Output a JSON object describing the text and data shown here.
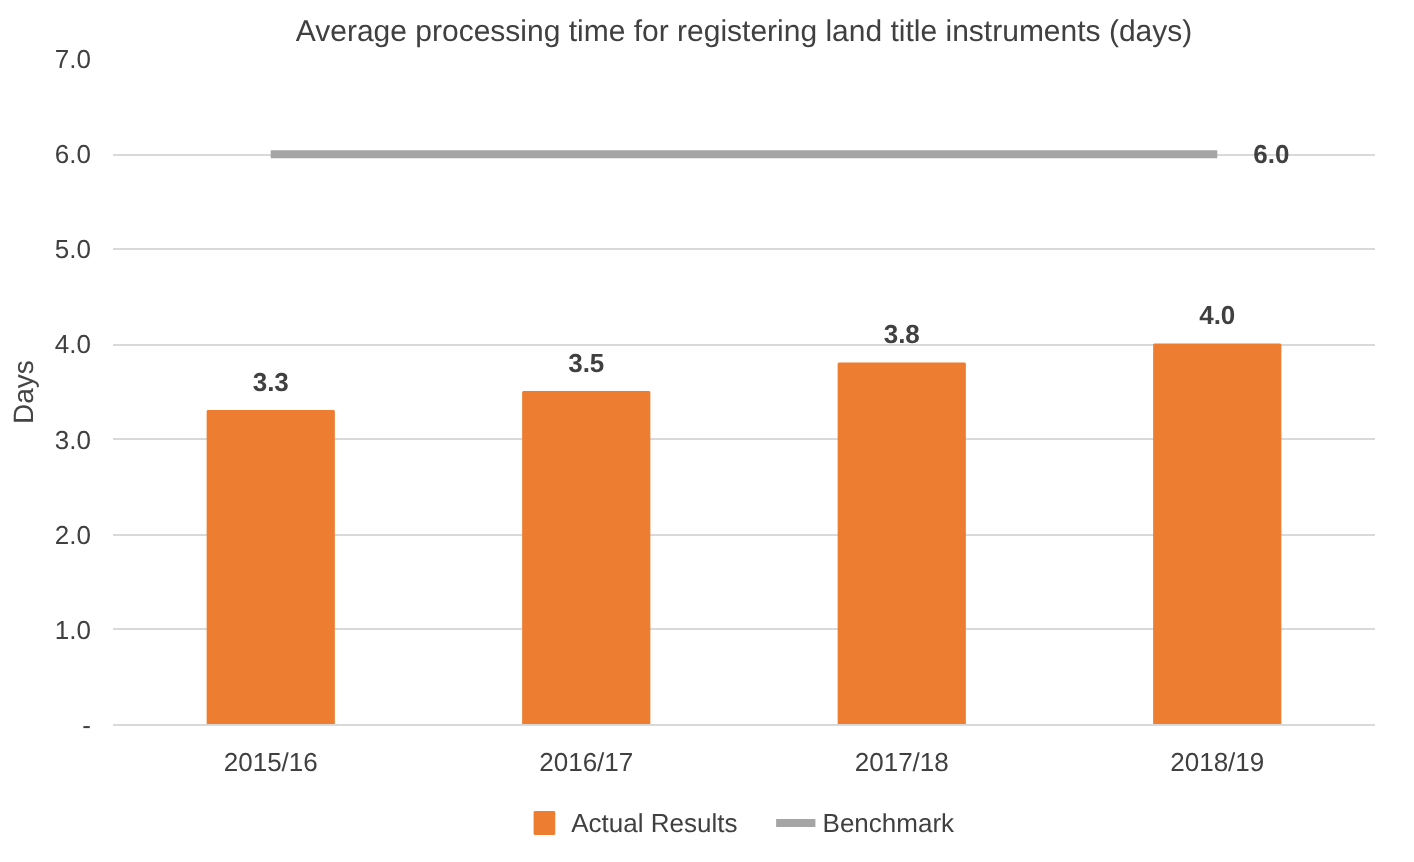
{
  "chart_data": {
    "type": "bar",
    "title": "Average processing time for registering land title instruments (days)",
    "ylabel": "Days",
    "categories": [
      "2015/16",
      "2016/17",
      "2017/18",
      "2018/19"
    ],
    "series": [
      {
        "name": "Actual Results",
        "color": "#ed7d31",
        "values": [
          3.3,
          3.5,
          3.8,
          4.0
        ],
        "value_labels": [
          "3.3",
          "3.5",
          "3.8",
          "4.0"
        ]
      },
      {
        "name": "Benchmark",
        "type": "line",
        "color": "#a5a5a5",
        "values": [
          6.0,
          6.0,
          6.0,
          6.0
        ],
        "value_labels": [
          null,
          null,
          null,
          "6.0"
        ]
      }
    ],
    "ylim": [
      0,
      7
    ],
    "yticks": [
      {
        "value": 0,
        "label": "-"
      },
      {
        "value": 1,
        "label": "1.0"
      },
      {
        "value": 2,
        "label": "2.0"
      },
      {
        "value": 3,
        "label": "3.0"
      },
      {
        "value": 4,
        "label": "4.0"
      },
      {
        "value": 5,
        "label": "5.0"
      },
      {
        "value": 6,
        "label": "6.0"
      },
      {
        "value": 7,
        "label": "7.0"
      }
    ],
    "grid": "y",
    "legend": "bottom"
  }
}
